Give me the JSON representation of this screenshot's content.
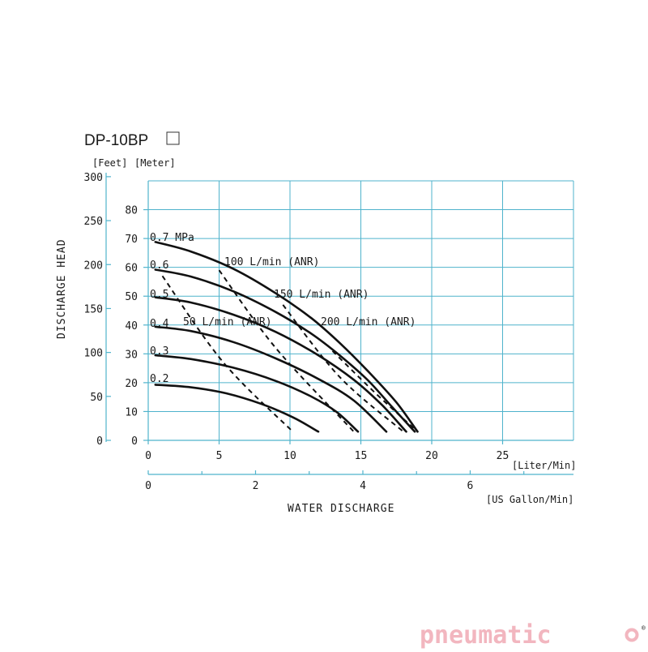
{
  "title": "DP-10BP",
  "units": {
    "feet": "[Feet]",
    "meter": "[Meter]",
    "liter": "[Liter/Min]",
    "gallon": "[US Gallon/Min]"
  },
  "axis_labels": {
    "y": "DISCHARGE  HEAD",
    "x": "WATER  DISCHARGE"
  },
  "brand": {
    "text": "pneumatic",
    "suffix": "o",
    "mark": "®"
  },
  "colors": {
    "grid": "#4fb3cc",
    "brand": "#f2b6bf",
    "curve": "#111111"
  },
  "chart_data": {
    "type": "line",
    "title": "DP-10BP",
    "xlabel": "WATER  DISCHARGE",
    "ylabel": "DISCHARGE  HEAD",
    "x_unit": "Liter/Min",
    "y_unit": "Meter",
    "xlim": [
      0,
      30
    ],
    "ylim": [
      0,
      90
    ],
    "x_ticks": [
      0,
      5,
      10,
      15,
      20,
      25
    ],
    "x_ticks_gallon": [
      0,
      2,
      4,
      6
    ],
    "y_ticks_meter": [
      0,
      10,
      20,
      30,
      40,
      50,
      60,
      70,
      80
    ],
    "y_ticks_feet": [
      0,
      50,
      100,
      150,
      200,
      250,
      300
    ],
    "pressure_curves": [
      {
        "label": "0.7 MPa",
        "points": [
          [
            0.5,
            68.8
          ],
          [
            3,
            65.5
          ],
          [
            6,
            59.5
          ],
          [
            9,
            51.0
          ],
          [
            11.5,
            42.4
          ],
          [
            13.5,
            33.8
          ],
          [
            15.5,
            24.0
          ],
          [
            17.5,
            13.2
          ],
          [
            19.0,
            3.0
          ]
        ]
      },
      {
        "label": "0.6",
        "points": [
          [
            0.5,
            59.2
          ],
          [
            3,
            56.8
          ],
          [
            6,
            51.7
          ],
          [
            9,
            44.5
          ],
          [
            11.5,
            37.0
          ],
          [
            13.5,
            29.5
          ],
          [
            15.5,
            20.8
          ],
          [
            17.2,
            11.6
          ],
          [
            18.8,
            3.0
          ]
        ]
      },
      {
        "label": "0.5",
        "points": [
          [
            0.5,
            49.6
          ],
          [
            3,
            47.8
          ],
          [
            6,
            43.6
          ],
          [
            9,
            37.6
          ],
          [
            12,
            29.5
          ],
          [
            14.5,
            21.0
          ],
          [
            16.5,
            12.2
          ],
          [
            18.2,
            3.0
          ]
        ]
      },
      {
        "label": "0.4",
        "points": [
          [
            0.5,
            39.4
          ],
          [
            3,
            37.9
          ],
          [
            6,
            34.1
          ],
          [
            9,
            28.4
          ],
          [
            12,
            21.3
          ],
          [
            14.5,
            13.8
          ],
          [
            16.8,
            3.0
          ]
        ]
      },
      {
        "label": "0.3",
        "points": [
          [
            0.5,
            29.5
          ],
          [
            3,
            28.2
          ],
          [
            6,
            25.2
          ],
          [
            9,
            20.6
          ],
          [
            11.5,
            15.2
          ],
          [
            13.3,
            9.8
          ],
          [
            14.8,
            3.0
          ]
        ]
      },
      {
        "label": "0.2",
        "points": [
          [
            0.5,
            19.3
          ],
          [
            3,
            18.4
          ],
          [
            5.5,
            16.3
          ],
          [
            8,
            12.6
          ],
          [
            10.2,
            8.0
          ],
          [
            12.0,
            3.0
          ]
        ]
      }
    ],
    "air_consumption_lines": [
      {
        "label": "50 L/min (ANR)",
        "points": [
          [
            1.0,
            57.0
          ],
          [
            5.3,
            27.0
          ],
          [
            10.2,
            3.0
          ]
        ]
      },
      {
        "label": "100 L/min (ANR)",
        "points": [
          [
            5.0,
            59.0
          ],
          [
            9.0,
            32.0
          ],
          [
            14.5,
            3.0
          ]
        ]
      },
      {
        "label": "150 L/min (ANR)",
        "points": [
          [
            9.5,
            47.0
          ],
          [
            13.5,
            22.0
          ],
          [
            18.0,
            3.0
          ]
        ]
      },
      {
        "label": "200 L/min (ANR)",
        "points": [
          [
            13.0,
            31.0
          ],
          [
            16.0,
            16.5
          ],
          [
            19.0,
            3.0
          ]
        ]
      }
    ],
    "curve_labels": [
      "0.7 MPa",
      "0.6",
      "0.5",
      "0.4",
      "0.3",
      "0.2"
    ],
    "air_labels": [
      "100 L/min (ANR)",
      "150 L/min (ANR)",
      "50 L/min (ANR)",
      "200 L/min (ANR)"
    ],
    "grid": true
  }
}
